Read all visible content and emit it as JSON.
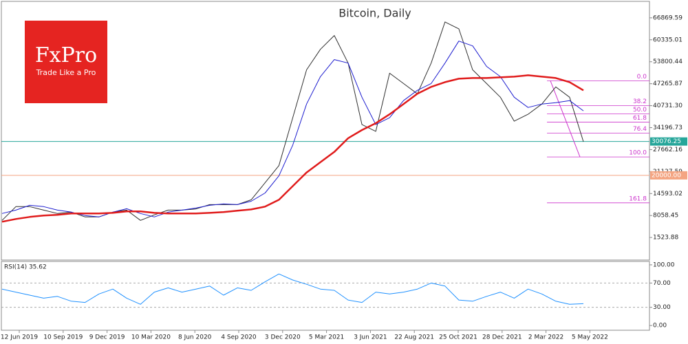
{
  "chart_data": [
    {
      "type": "line",
      "title": "Bitcoin, Daily",
      "brand": {
        "name": "FxPro",
        "tagline": "Trade Like a Pro"
      },
      "xtick_labels": [
        "12 Jun 2019",
        "10 Sep 2019",
        "9 Dec 2019",
        "10 Mar 2020",
        "8 Jun 2020",
        "4 Sep 2020",
        "3 Dec 2020",
        "5 Mar 2021",
        "3 Jun 2021",
        "22 Aug 2021",
        "25 Oct 2021",
        "28 Dec 2021",
        "2 Mar 2022",
        "5 May 2022"
      ],
      "ylim": [
        -5200,
        71760
      ],
      "yticks": [
        66869.59,
        60335.01,
        53800.44,
        47265.87,
        {
          "value": 40731.3,
          "label": "40731.30"
        },
        34196.73,
        27662.16,
        21127.59,
        14593.02,
        8058.45,
        1523.88
      ],
      "series": [
        {
          "color": "#2f2f2f",
          "values": [
            6600,
            10700,
            10700,
            9670,
            8650,
            9060,
            7630,
            7630,
            9060,
            9670,
            6600,
            8240,
            9670,
            9670,
            10000,
            11300,
            11300,
            11300,
            12720,
            17800,
            22900,
            37150,
            51400,
            57500,
            61600,
            53400,
            35100,
            33100,
            50400,
            47330,
            44270,
            53400,
            65650,
            63600,
            51400,
            47330,
            43250,
            36130,
            38170,
            41220,
            46310,
            43250,
            30000
          ]
        },
        {
          "color": "#1c1ccf",
          "values": [
            8650,
            9670,
            11100,
            10700,
            9670,
            9060,
            8040,
            7630,
            9060,
            10070,
            8650,
            7630,
            9060,
            9670,
            10270,
            11100,
            11500,
            11300,
            12310,
            14760,
            19850,
            29000,
            41220,
            49360,
            54450,
            53400,
            43250,
            35100,
            37150,
            42240,
            45290,
            47330,
            53400,
            59950,
            58520,
            52420,
            49360,
            43250,
            40200,
            41220,
            41630,
            42240,
            39190
          ]
        },
        {
          "color": "#e01b1b",
          "values": [
            6200,
            7020,
            7630,
            8040,
            8240,
            8650,
            8650,
            8650,
            8850,
            9270,
            9270,
            8850,
            8650,
            8650,
            8650,
            8850,
            9060,
            9470,
            9870,
            10700,
            12720,
            16800,
            20860,
            23920,
            26970,
            31040,
            33480,
            35520,
            38170,
            41220,
            44270,
            46310,
            47740,
            48750,
            48960,
            48960,
            49160,
            49360,
            49770,
            49360,
            48960,
            47740,
            45290
          ]
        }
      ],
      "price_lines": [
        {
          "value": 30076.25,
          "color": "#26a69a"
        },
        {
          "value": 20000,
          "label": "20000.00",
          "color": "#f4a582"
        }
      ],
      "fib_color": "#cc33cc",
      "fib_levels": [
        {
          "value": 48141,
          "label": "0.0"
        },
        {
          "value": 40731,
          "label": "38.2"
        },
        {
          "value": 38290,
          "label": "50.0"
        },
        {
          "value": 35850,
          "label": "61.8"
        },
        {
          "value": 32590,
          "label": "76.4"
        },
        {
          "value": 25470,
          "label": "100.0"
        },
        {
          "value": 11830,
          "label": "161.8"
        }
      ]
    },
    {
      "type": "line",
      "label": "RSI(14) 35.62",
      "ylim": [
        -7.8,
        105.6
      ],
      "yticks": [
        {
          "value": 100,
          "label": "100.00"
        },
        {
          "value": 70,
          "label": "70.00"
        },
        {
          "value": 30,
          "label": "30.00"
        },
        {
          "value": 0,
          "label": "0.00"
        }
      ],
      "dashed_levels": [
        70,
        30
      ],
      "series": [
        {
          "color": "#1e90ff",
          "values": [
            60,
            55,
            50,
            45,
            48,
            40,
            38,
            52,
            60,
            45,
            35,
            55,
            62,
            55,
            60,
            65,
            50,
            62,
            58,
            72,
            85,
            75,
            68,
            60,
            58,
            42,
            38,
            55,
            52,
            55,
            60,
            70,
            65,
            42,
            40,
            48,
            55,
            45,
            60,
            52,
            40,
            35,
            36
          ]
        }
      ]
    }
  ]
}
